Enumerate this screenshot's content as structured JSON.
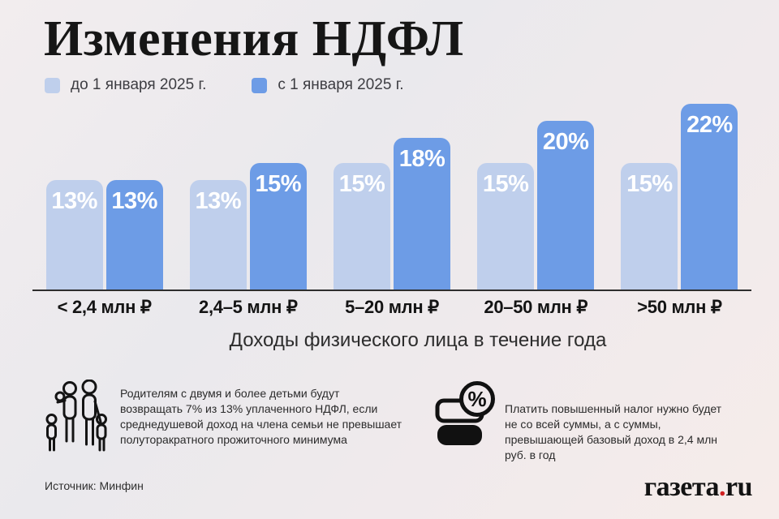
{
  "title": "Изменения НДФЛ",
  "chart_data": {
    "type": "bar",
    "title": "Изменения НДФЛ",
    "categories": [
      "< 2,4 млн ₽",
      "2,4–5 млн ₽",
      "5–20 млн ₽",
      "20–50 млн ₽",
      ">50 млн ₽"
    ],
    "series": [
      {
        "name": "до 1 января 2025 г.",
        "values": [
          13,
          13,
          15,
          15,
          15
        ],
        "color": "#bfcfec"
      },
      {
        "name": "с 1 января 2025 г.",
        "values": [
          13,
          15,
          18,
          20,
          22
        ],
        "color": "#6d9ce6"
      }
    ],
    "value_suffix": "%",
    "xlabel": "Доходы физического лица в течение года",
    "ylabel": "",
    "ylim": [
      0,
      24
    ],
    "grid": false,
    "legend_position": "top-left",
    "bar_label_color": "#ffffff"
  },
  "footnotes": [
    {
      "icon": "family-icon",
      "text": "Родителям с двумя и более детьми будут возвращать 7% из 13% уплаченного НДФЛ, если среднедушевой доход на члена семьи не превышает полуторакратного прожиточного минимума"
    },
    {
      "icon": "money-percent-icon",
      "icon_glyph": "%",
      "text": "Платить повышенный налог нужно будет не со всей суммы, а с суммы, превышающей базовый доход в 2,4 млн руб. в год"
    }
  ],
  "source": "Источник: Минфин",
  "logo": {
    "part1": "газета",
    "dot": ".",
    "part2": "ru",
    "dot_color": "#d02020"
  }
}
